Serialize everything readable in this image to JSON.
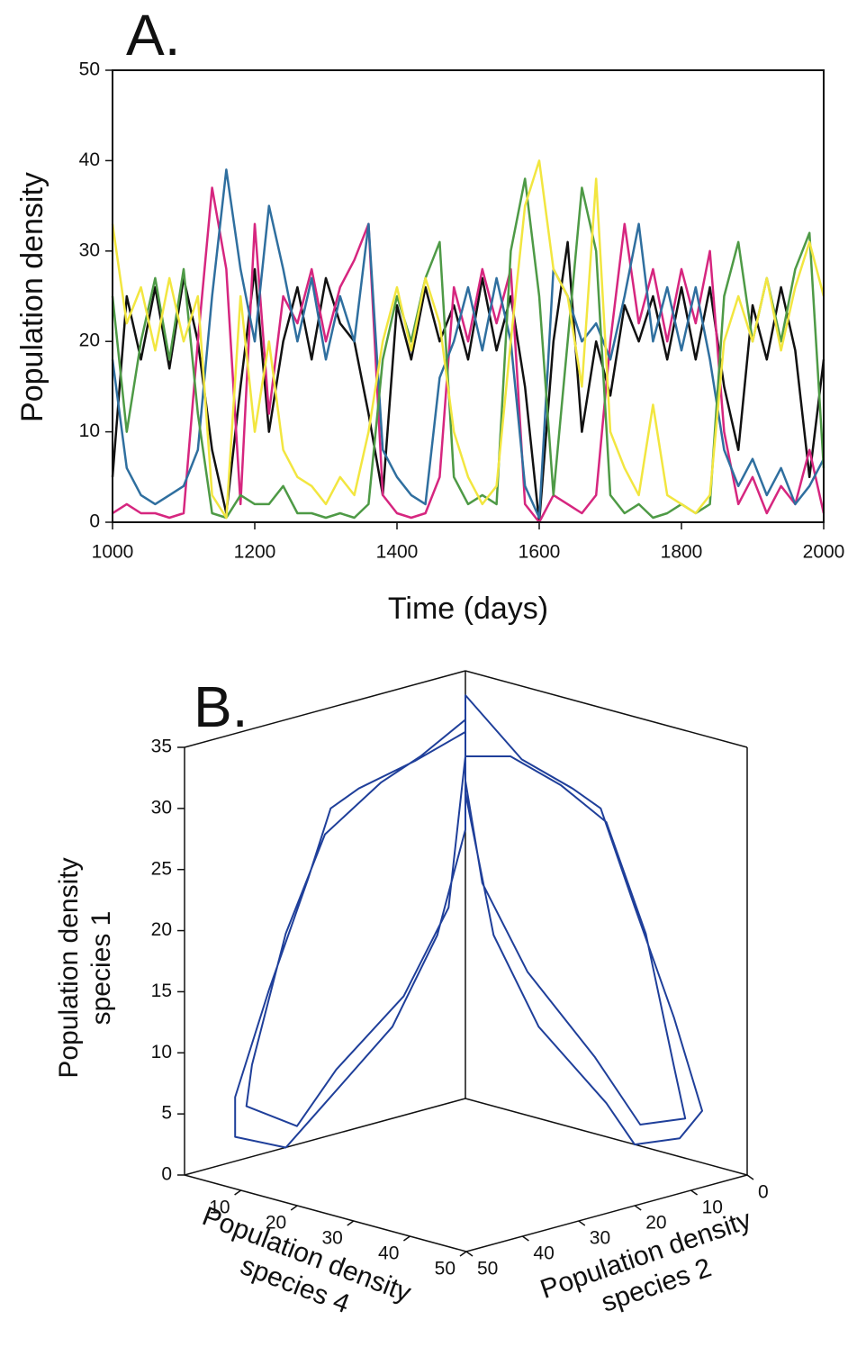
{
  "chart_data": [
    {
      "type": "line",
      "panel": "A.",
      "xlabel": "Time (days)",
      "ylabel": "Population density",
      "x": [
        1000,
        1020,
        1040,
        1060,
        1080,
        1100,
        1120,
        1140,
        1160,
        1180,
        1200,
        1220,
        1240,
        1260,
        1280,
        1300,
        1320,
        1340,
        1360,
        1380,
        1400,
        1420,
        1440,
        1460,
        1480,
        1500,
        1520,
        1540,
        1560,
        1580,
        1600,
        1620,
        1640,
        1660,
        1680,
        1700,
        1720,
        1740,
        1760,
        1780,
        1800,
        1820,
        1840,
        1860,
        1880,
        1900,
        1920,
        1940,
        1960,
        1980,
        2000
      ],
      "series": [
        {
          "color": "#111111",
          "values": [
            5,
            25,
            18,
            26,
            17,
            27,
            20,
            8,
            1,
            15,
            28,
            10,
            20,
            26,
            18,
            27,
            22,
            20,
            12,
            3,
            24,
            18,
            26,
            20,
            24,
            18,
            27,
            19,
            25,
            15,
            0,
            20,
            31,
            10,
            20,
            14,
            24,
            20,
            25,
            18,
            26,
            18,
            26,
            15,
            8,
            24,
            18,
            26,
            19,
            5,
            18
          ]
        },
        {
          "color": "#d6267f",
          "values": [
            1,
            2,
            1,
            1,
            0.5,
            1,
            20,
            37,
            28,
            2,
            33,
            12,
            25,
            22,
            28,
            20,
            26,
            29,
            33,
            3,
            1,
            0.5,
            1,
            5,
            26,
            20,
            28,
            22,
            28,
            2,
            0,
            3,
            2,
            1,
            3,
            20,
            33,
            22,
            28,
            20,
            28,
            22,
            30,
            10,
            2,
            5,
            1,
            4,
            2,
            8,
            1
          ]
        },
        {
          "color": "#2f6f9f",
          "values": [
            18,
            6,
            3,
            2,
            3,
            4,
            8,
            25,
            39,
            28,
            20,
            35,
            28,
            20,
            27,
            18,
            25,
            20,
            33,
            8,
            5,
            3,
            2,
            16,
            20,
            26,
            19,
            27,
            20,
            4,
            0.5,
            28,
            25,
            20,
            22,
            18,
            25,
            33,
            20,
            26,
            19,
            26,
            18,
            8,
            4,
            7,
            3,
            6,
            2,
            4,
            7
          ]
        },
        {
          "color": "#4e9a46",
          "values": [
            25,
            10,
            20,
            27,
            18,
            28,
            12,
            1,
            0.5,
            3,
            2,
            2,
            4,
            1,
            1,
            0.5,
            1,
            0.5,
            2,
            18,
            25,
            20,
            27,
            31,
            5,
            2,
            3,
            2,
            30,
            38,
            25,
            3,
            20,
            37,
            30,
            3,
            1,
            2,
            0.5,
            1,
            2,
            1,
            2,
            25,
            31,
            20,
            27,
            20,
            28,
            32,
            6
          ]
        },
        {
          "color": "#f2e640",
          "values": [
            33,
            22,
            26,
            19,
            27,
            20,
            25,
            3,
            0.5,
            25,
            10,
            20,
            8,
            5,
            4,
            2,
            5,
            3,
            10,
            20,
            26,
            19,
            27,
            22,
            10,
            5,
            2,
            4,
            20,
            35,
            40,
            28,
            25,
            15,
            38,
            10,
            6,
            3,
            13,
            3,
            2,
            1,
            3,
            20,
            25,
            20,
            27,
            19,
            26,
            31,
            25
          ]
        }
      ],
      "xlim": [
        1000,
        2000
      ],
      "xticks": [
        1000,
        1200,
        1400,
        1600,
        1800,
        2000
      ],
      "ylim": [
        0,
        50
      ],
      "yticks": [
        0,
        10,
        20,
        30,
        40,
        50
      ]
    },
    {
      "type": "line3d",
      "panel": "B.",
      "xlabel": [
        "Population density",
        "species 4"
      ],
      "ylabel": [
        "Population density",
        "species 2"
      ],
      "zlabel": [
        "Population density",
        "species 1"
      ],
      "series": [
        {
          "color": "#1f3f9a",
          "x": [
            0,
            1,
            1,
            1,
            2,
            3,
            3,
            4,
            8,
            5,
            2,
            0,
            0,
            0,
            10,
            20,
            25,
            32,
            40,
            45,
            44,
            38,
            30,
            15,
            5,
            0,
            0,
            0,
            1,
            1,
            2,
            2,
            3,
            6,
            3,
            1,
            0,
            0,
            8,
            18,
            26,
            34,
            40,
            42,
            36,
            26,
            12,
            3,
            0,
            0
          ],
          "y": [
            0,
            10,
            20,
            25,
            30,
            38,
            44,
            45,
            40,
            30,
            15,
            5,
            0,
            0,
            0,
            1,
            1,
            2,
            3,
            3,
            6,
            8,
            5,
            2,
            0,
            0,
            0,
            8,
            16,
            26,
            34,
            40,
            42,
            36,
            26,
            12,
            3,
            0,
            0,
            1,
            1,
            2,
            3,
            3,
            5,
            3,
            1,
            0,
            0,
            0
          ],
          "z": [
            30,
            29,
            28,
            27,
            22,
            14,
            6,
            3,
            2,
            4,
            8,
            14,
            22,
            33,
            29,
            28,
            27,
            20,
            12,
            5,
            3,
            2,
            4,
            8,
            14,
            25,
            31,
            29,
            28,
            25,
            18,
            8,
            5,
            3,
            6,
            10,
            16,
            28,
            29,
            28,
            26,
            18,
            8,
            4,
            3,
            7,
            12,
            18,
            26,
            30
          ]
        }
      ],
      "xlim": [
        0,
        50
      ],
      "xticks": [
        10,
        20,
        30,
        40,
        50
      ],
      "ylim": [
        0,
        50
      ],
      "yticks": [
        0,
        10,
        20,
        30,
        40,
        50
      ],
      "zlim": [
        0,
        35
      ],
      "zticks": [
        0,
        5,
        10,
        15,
        20,
        25,
        30,
        35
      ]
    }
  ]
}
